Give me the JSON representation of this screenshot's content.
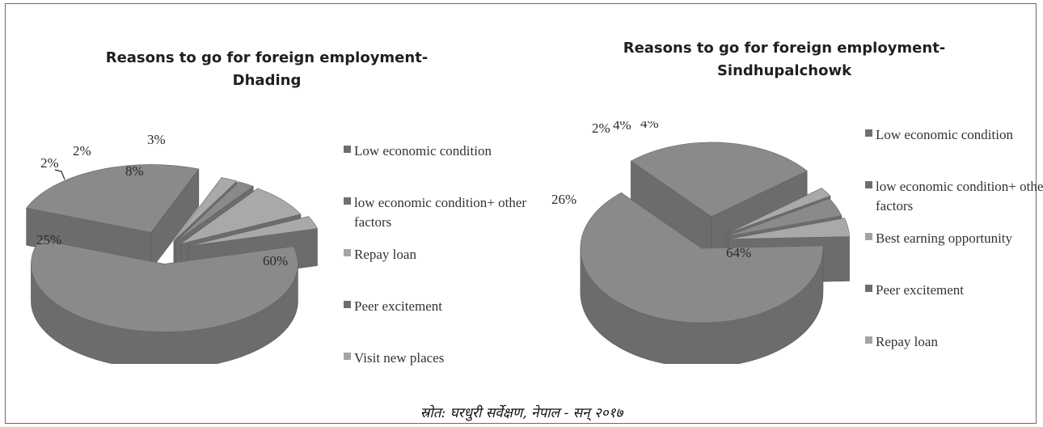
{
  "colors": {
    "slice_top": "#8a8a8a",
    "slice_side": "#6c6c6c",
    "slice_light": "#a9a9a9",
    "legend_dark": "#6e6e6e",
    "legend_light": "#a3a3a3",
    "label": "#2a2a2a"
  },
  "source": "स्रोत: घरधुरी सर्वेक्षण, नेपाल - सन् २०१७",
  "chart_data": [
    {
      "type": "pie",
      "title": [
        "Reasons to go for foreign employment-",
        "Dhading"
      ],
      "legend_position": "right",
      "slices": [
        {
          "label": "Low economic condition",
          "legend_lines": [
            "Low economic condition"
          ],
          "value": 60,
          "display": "60%",
          "shade": "dark"
        },
        {
          "label": "low economic condition+ other factors",
          "legend_lines": [
            "low economic condition+ other",
            "factors"
          ],
          "value": 25,
          "display": "25%",
          "shade": "dark"
        },
        {
          "label": "Repay loan",
          "legend_lines": [
            "Repay loan"
          ],
          "value": 2,
          "display": "2%",
          "shade": "light"
        },
        {
          "label": "Peer excitement",
          "legend_lines": [
            "Peer excitement"
          ],
          "value": 2,
          "display": "2%",
          "shade": "dark"
        },
        {
          "label": "Visit new places",
          "legend_lines": [
            "Visit new places"
          ],
          "value": 8,
          "display": "8%",
          "shade": "light"
        },
        {
          "label": "",
          "legend_lines": [],
          "value": 3,
          "display": "3%",
          "shade": "light"
        }
      ]
    },
    {
      "type": "pie",
      "title": [
        "Reasons to go for foreign employment-",
        "Sindhupalchowk"
      ],
      "legend_position": "right",
      "slices": [
        {
          "label": "Low economic condition",
          "legend_lines": [
            "Low economic condition"
          ],
          "value": 64,
          "display": "64%",
          "shade": "dark"
        },
        {
          "label": "low economic condition+ other factors",
          "legend_lines": [
            "low economic condition+ other",
            "factors"
          ],
          "value": 26,
          "display": "26%",
          "shade": "dark"
        },
        {
          "label": "Best earning opportunity",
          "legend_lines": [
            "Best earning opportunity"
          ],
          "value": 2,
          "display": "2%",
          "shade": "light"
        },
        {
          "label": "Peer excitement",
          "legend_lines": [
            "Peer excitement"
          ],
          "value": 4,
          "display": "4%",
          "shade": "dark"
        },
        {
          "label": "Repay loan",
          "legend_lines": [
            "Repay loan"
          ],
          "value": 4,
          "display": "4%",
          "shade": "light"
        }
      ]
    }
  ]
}
